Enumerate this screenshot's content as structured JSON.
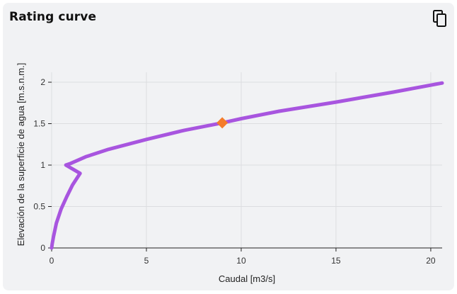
{
  "header": {
    "title": "Rating curve",
    "copy_icon": "copy-icon"
  },
  "colors": {
    "curve": "#a855df",
    "marker": "#f47c2c",
    "grid": "#dcdde0",
    "card": "#f1f2f4"
  },
  "chart_data": {
    "type": "line",
    "xlabel": "Caudal [m3/s]",
    "ylabel": "Elevación de la superficie de agua [m.s.n.m.]",
    "xlim": [
      0,
      20.6
    ],
    "ylim": [
      0,
      2.12
    ],
    "xticks": [
      0,
      5,
      10,
      15,
      20
    ],
    "yticks": [
      0,
      0.5,
      1,
      1.5,
      2
    ],
    "xtick_labels": [
      "0",
      "5",
      "10",
      "15",
      "20"
    ],
    "ytick_labels": [
      "0",
      "0.5",
      "1",
      "1.5",
      "2"
    ],
    "grid": true,
    "series": [
      {
        "x": [
          0.0,
          0.03,
          0.1,
          0.25,
          0.5,
          0.8,
          1.1,
          1.5,
          0.75,
          1.0,
          1.8,
          3.0,
          5.0,
          7.0,
          9.0,
          10.0,
          12.0,
          15.0,
          18.0,
          20.6
        ],
        "y": [
          0.0,
          0.05,
          0.14,
          0.3,
          0.47,
          0.62,
          0.76,
          0.9,
          1.0,
          1.02,
          1.1,
          1.19,
          1.31,
          1.42,
          1.51,
          1.56,
          1.65,
          1.76,
          1.88,
          1.99
        ]
      }
    ],
    "highlight_point": {
      "x": 9.0,
      "y": 1.51,
      "shape": "diamond"
    }
  }
}
